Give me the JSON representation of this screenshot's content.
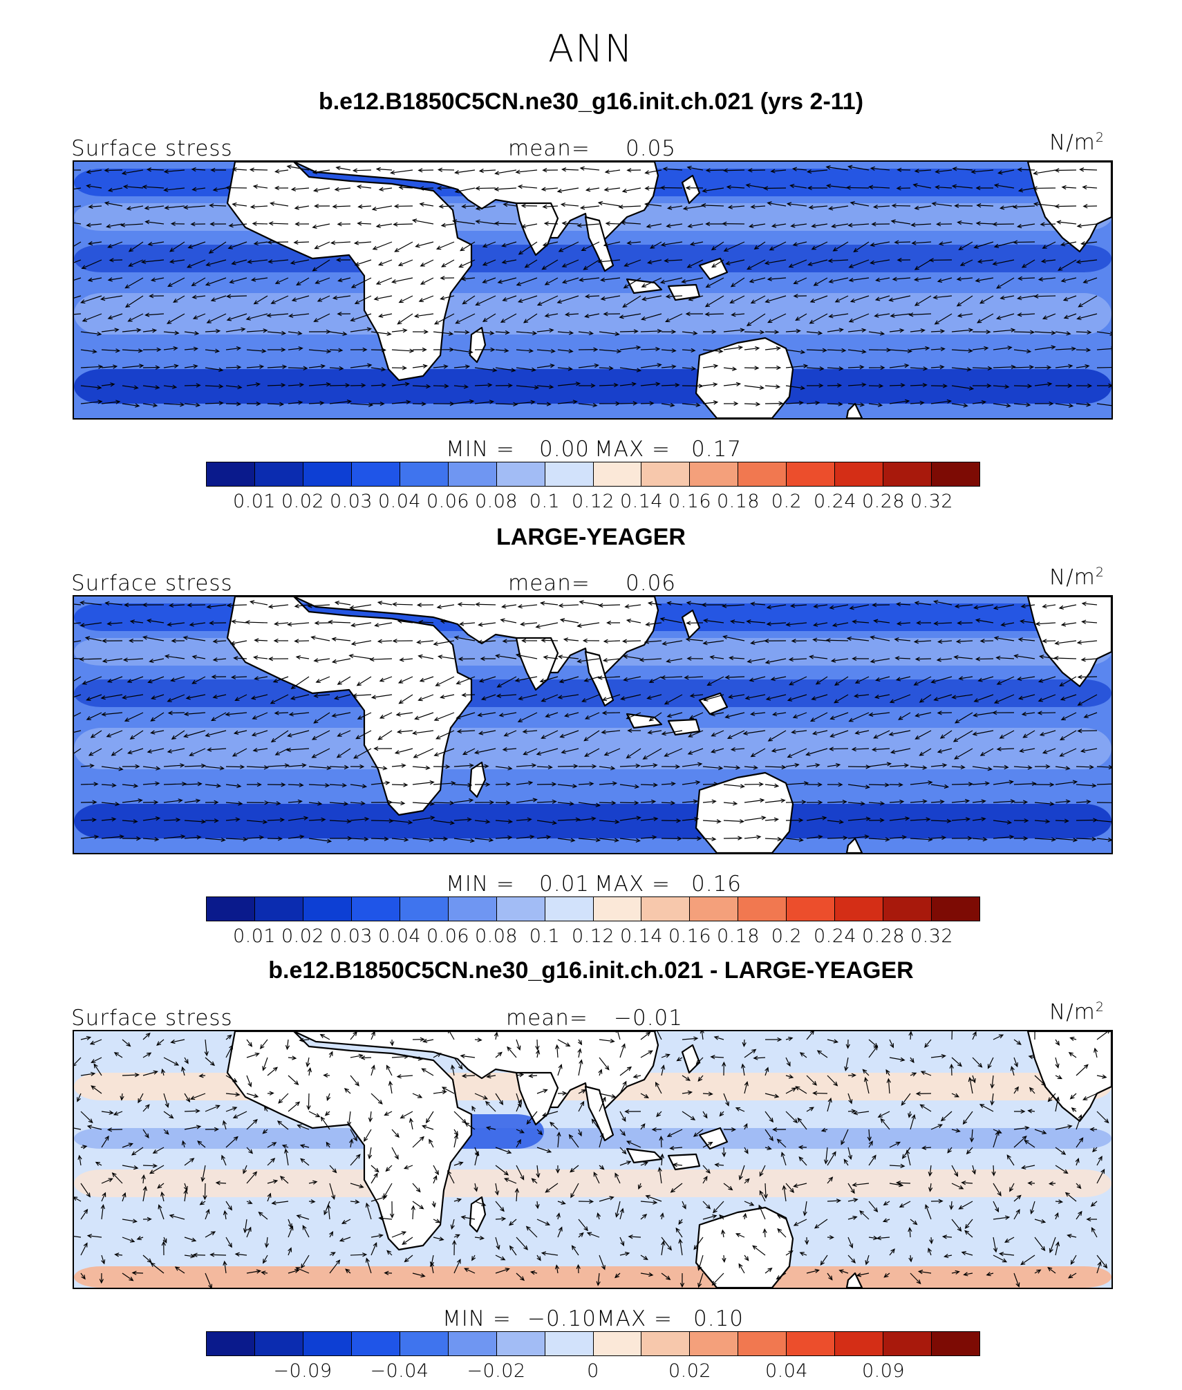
{
  "title": "ANN",
  "colorbar": {
    "colors": [
      "#0a1a8c",
      "#0b2cb0",
      "#0d3fd4",
      "#1f55e8",
      "#3f74ee",
      "#6f96f2",
      "#a2bcf5",
      "#d2e2fb",
      "#fbe8d8",
      "#f7c8ac",
      "#f4a07b",
      "#f17850",
      "#ec4e2c",
      "#d42e16",
      "#a8190c",
      "#7d0b04"
    ]
  },
  "panels": [
    {
      "case_title": "b.e12.B1850C5CN.ne30_g16.init.ch.021 (yrs 2-11)",
      "variable": "Surface stress",
      "mean_label": "mean=",
      "mean_value": "0.05",
      "units": "N/m",
      "units_sup": "2",
      "min_label": "MIN =",
      "min_value": "0.00",
      "max_label": "MAX =",
      "max_value": "0.17",
      "ticks": [
        "0.01",
        "0.02",
        "0.03",
        "0.04",
        "0.06",
        "0.08",
        "0.1",
        "0.12",
        "0.14",
        "0.16",
        "0.18",
        "0.2",
        "0.24",
        "0.28",
        "0.32"
      ]
    },
    {
      "case_title": "LARGE-YEAGER",
      "variable": "Surface stress",
      "mean_label": "mean=",
      "mean_value": "0.06",
      "units": "N/m",
      "units_sup": "2",
      "min_label": "MIN =",
      "min_value": "0.01",
      "max_label": "MAX =",
      "max_value": "0.16",
      "ticks": [
        "0.01",
        "0.02",
        "0.03",
        "0.04",
        "0.06",
        "0.08",
        "0.1",
        "0.12",
        "0.14",
        "0.16",
        "0.18",
        "0.2",
        "0.24",
        "0.28",
        "0.32"
      ]
    },
    {
      "case_title": "b.e12.B1850C5CN.ne30_g16.init.ch.021 - LARGE-YEAGER",
      "variable": "Surface stress",
      "mean_label": "mean=",
      "mean_value": "−0.01",
      "units": "N/m",
      "units_sup": "2",
      "min_label": "MIN =",
      "min_value": "−0.10",
      "max_label": "MAX =",
      "max_value": "0.10",
      "ticks": [
        "−0.09",
        "−0.04",
        "−0.02",
        "0",
        "0.02",
        "0.04",
        "0.09"
      ]
    }
  ]
}
